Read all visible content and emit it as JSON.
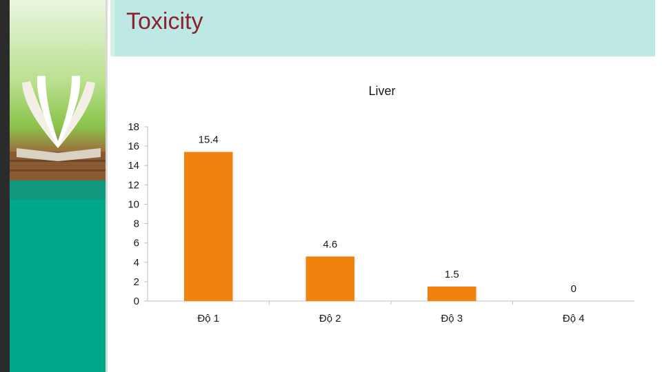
{
  "slide": {
    "title": "Toxicity"
  },
  "chart_data": {
    "type": "bar",
    "title": "Liver",
    "categories": [
      "Độ 1",
      "Độ 2",
      "Độ 3",
      "Độ 4"
    ],
    "values": [
      15.4,
      4.6,
      1.5,
      0
    ],
    "data_labels": [
      "15.4",
      "4.6",
      "1.5",
      "0"
    ],
    "ylim": [
      0,
      18
    ],
    "yticks": [
      0,
      2,
      4,
      6,
      8,
      10,
      12,
      14,
      16,
      18
    ],
    "xlabel": "",
    "ylabel": "",
    "grid": false,
    "legend": "none",
    "bar_color": "#f0820f"
  },
  "theme": {
    "title_color": "#8b2230",
    "header_color": "#bde8e3",
    "side_panel_color": "#00a88a"
  }
}
